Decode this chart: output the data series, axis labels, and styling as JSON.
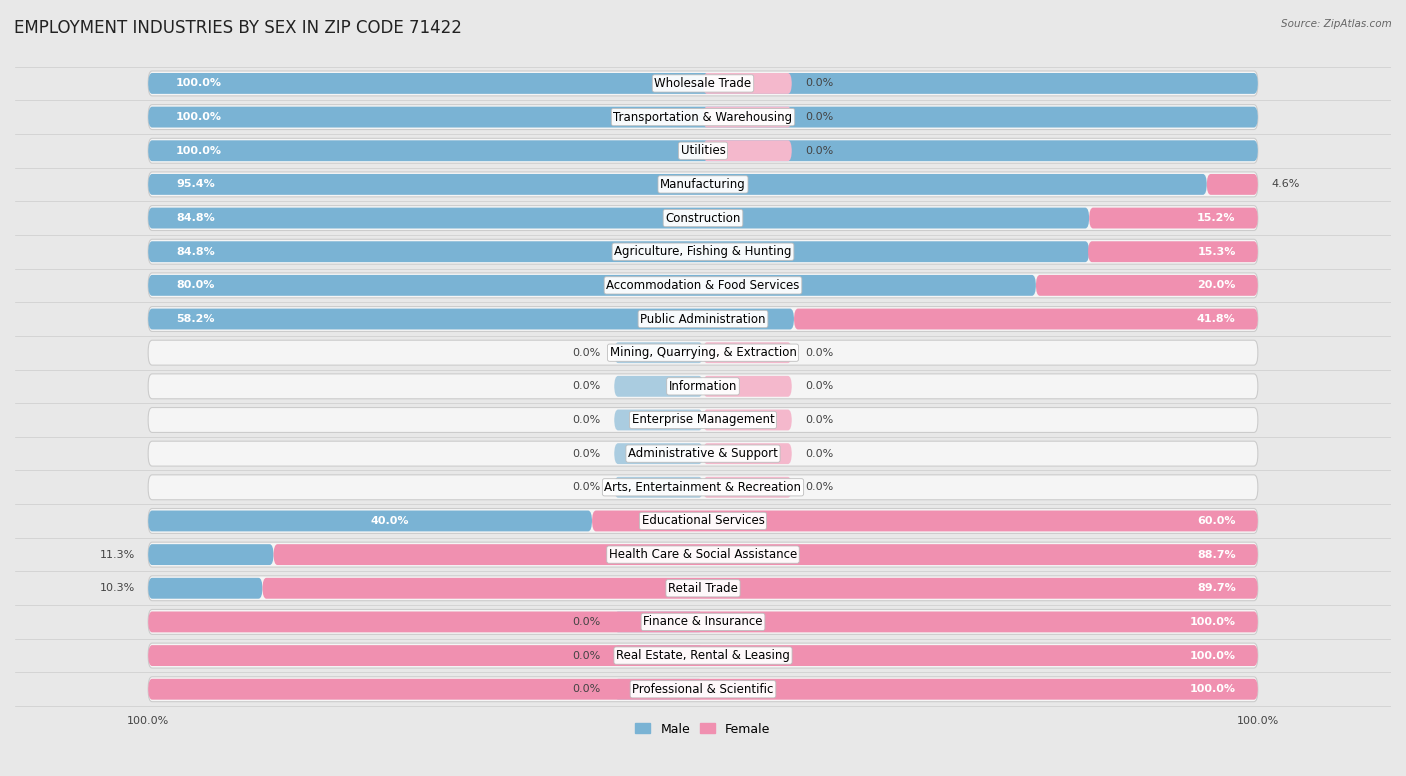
{
  "title": "EMPLOYMENT INDUSTRIES BY SEX IN ZIP CODE 71422",
  "source": "Source: ZipAtlas.com",
  "male_color": "#7ab3d4",
  "female_color": "#f090b0",
  "male_stub_color": "#aacce0",
  "female_stub_color": "#f4b8cc",
  "bg_color": "#e8e8e8",
  "row_bg_color": "#f5f5f5",
  "categories": [
    "Wholesale Trade",
    "Transportation & Warehousing",
    "Utilities",
    "Manufacturing",
    "Construction",
    "Agriculture, Fishing & Hunting",
    "Accommodation & Food Services",
    "Public Administration",
    "Mining, Quarrying, & Extraction",
    "Information",
    "Enterprise Management",
    "Administrative & Support",
    "Arts, Entertainment & Recreation",
    "Educational Services",
    "Health Care & Social Assistance",
    "Retail Trade",
    "Finance & Insurance",
    "Real Estate, Rental & Leasing",
    "Professional & Scientific"
  ],
  "male_pct": [
    100.0,
    100.0,
    100.0,
    95.4,
    84.8,
    84.8,
    80.0,
    58.2,
    0.0,
    0.0,
    0.0,
    0.0,
    0.0,
    40.0,
    11.3,
    10.3,
    0.0,
    0.0,
    0.0
  ],
  "female_pct": [
    0.0,
    0.0,
    0.0,
    4.6,
    15.2,
    15.3,
    20.0,
    41.8,
    0.0,
    0.0,
    0.0,
    0.0,
    0.0,
    60.0,
    88.7,
    89.7,
    100.0,
    100.0,
    100.0
  ],
  "legend_male": "Male",
  "legend_female": "Female",
  "title_fontsize": 12,
  "label_fontsize": 8.5,
  "pct_fontsize": 8,
  "axis_label_fontsize": 8,
  "inside_label_threshold": 15
}
